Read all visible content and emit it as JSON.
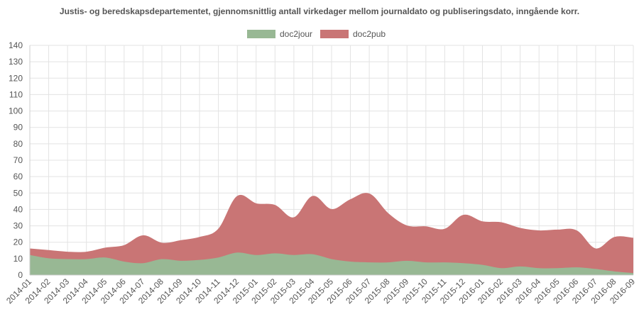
{
  "chart_data": {
    "type": "area",
    "stacked": true,
    "title": "Justis- og beredskapsdepartementet, gjennomsnittlig antall virkedager mellom journaldato og publiseringsdato, inngående korr.",
    "xlabel": "",
    "ylabel": "",
    "ylim": [
      0,
      140
    ],
    "ytick_step": 10,
    "grid": true,
    "legend": "top-center",
    "categories": [
      "2014-01",
      "2014-02",
      "2014-03",
      "2014-04",
      "2014-05",
      "2014-06",
      "2014-07",
      "2014-08",
      "2014-09",
      "2014-10",
      "2014-11",
      "2014-12",
      "2015-01",
      "2015-02",
      "2015-03",
      "2015-04",
      "2015-05",
      "2015-06",
      "2015-07",
      "2015-08",
      "2015-09",
      "2015-10",
      "2015-11",
      "2015-12",
      "2016-01",
      "2016-02",
      "2016-03",
      "2016-04",
      "2016-05",
      "2016-06",
      "2016-07",
      "2016-08",
      "2016-09"
    ],
    "series": [
      {
        "name": "doc2jour",
        "color": "#98b894",
        "values": [
          12,
          10,
          9.5,
          9.5,
          10.5,
          8,
          7,
          9.5,
          8.5,
          9,
          10.5,
          13.5,
          12,
          13,
          12,
          12.5,
          9.5,
          8,
          7.5,
          7.5,
          8.5,
          7.5,
          7.5,
          7,
          6,
          4,
          5,
          4,
          4,
          4.5,
          3.5,
          2,
          1
        ]
      },
      {
        "name": "doc2pub",
        "color": "#c97575",
        "values": [
          16,
          15,
          14,
          14,
          16.5,
          18,
          24,
          19.5,
          21,
          23,
          28,
          48,
          43.5,
          42.5,
          35,
          48,
          40,
          46,
          49.5,
          37.5,
          30,
          29.5,
          28,
          36.5,
          32.5,
          32,
          28.5,
          27,
          27.5,
          27,
          16,
          23,
          22.5
        ]
      }
    ]
  }
}
